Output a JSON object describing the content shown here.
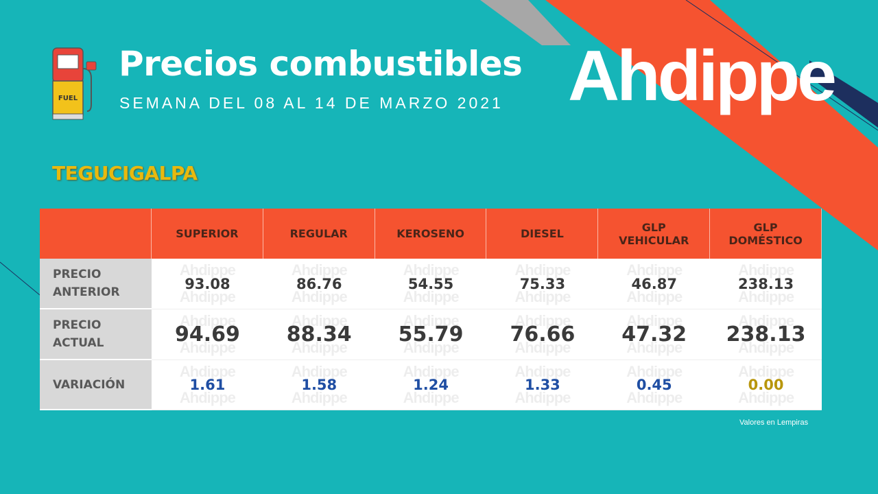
{
  "header": {
    "title": "Precios combustibles",
    "subtitle": "SEMANA DEL 08 AL 14 DE MARZO 2021",
    "logo": "Ahdippe",
    "icon_label": "FUEL"
  },
  "city": "TEGUCIGALPA",
  "table": {
    "columns": [
      "SUPERIOR",
      "REGULAR",
      "KEROSENO",
      "DIESEL",
      "GLP VEHICULAR",
      "GLP DOMÉSTICO"
    ],
    "rows": [
      {
        "label": "PRECIO ANTERIOR",
        "values": [
          "93.08",
          "86.76",
          "54.55",
          "75.33",
          "46.87",
          "238.13"
        ]
      },
      {
        "label": "PRECIO ACTUAL",
        "values": [
          "94.69",
          "88.34",
          "55.79",
          "76.66",
          "47.32",
          "238.13"
        ]
      },
      {
        "label": "VARIACIÓN",
        "values": [
          "1.61",
          "1.58",
          "1.24",
          "1.33",
          "0.45",
          "0.00"
        ]
      }
    ]
  },
  "note": "Valores en Lempiras"
}
